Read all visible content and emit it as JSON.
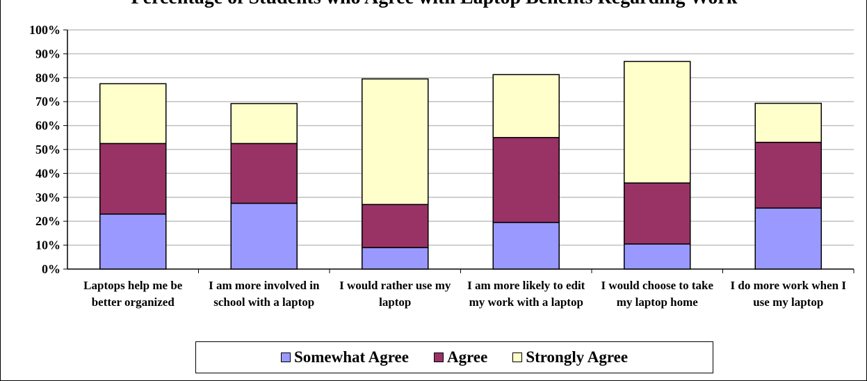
{
  "chart_data": {
    "type": "bar",
    "stacked": true,
    "title": "Percentage of Students who Agree with Laptop Benefits Regarding Work",
    "categories": [
      "Laptops help me be better organized",
      "I am more involved in school with a laptop",
      "I would rather use my laptop",
      "I am more likely to edit my work with a laptop",
      "I would choose to take my laptop home",
      "I do more work when I use my laptop"
    ],
    "series": [
      {
        "name": "Somewhat Agree",
        "color": "#9999FF",
        "values": [
          23,
          27.5,
          9,
          19.5,
          10.5,
          25.5
        ]
      },
      {
        "name": "Agree",
        "color": "#993366",
        "values": [
          29.5,
          25,
          18,
          35.5,
          25.5,
          27.5
        ]
      },
      {
        "name": "Strongly Agree",
        "color": "#FFFFCC",
        "values": [
          25,
          16.7,
          52.5,
          26.3,
          50.8,
          16.3
        ]
      }
    ],
    "ylim": [
      0,
      100
    ],
    "yticks": [
      "0%",
      "10%",
      "20%",
      "30%",
      "40%",
      "50%",
      "60%",
      "70%",
      "80%",
      "90%",
      "100%"
    ],
    "grid": true,
    "legend_position": "bottom",
    "xlabel": "",
    "ylabel": ""
  }
}
